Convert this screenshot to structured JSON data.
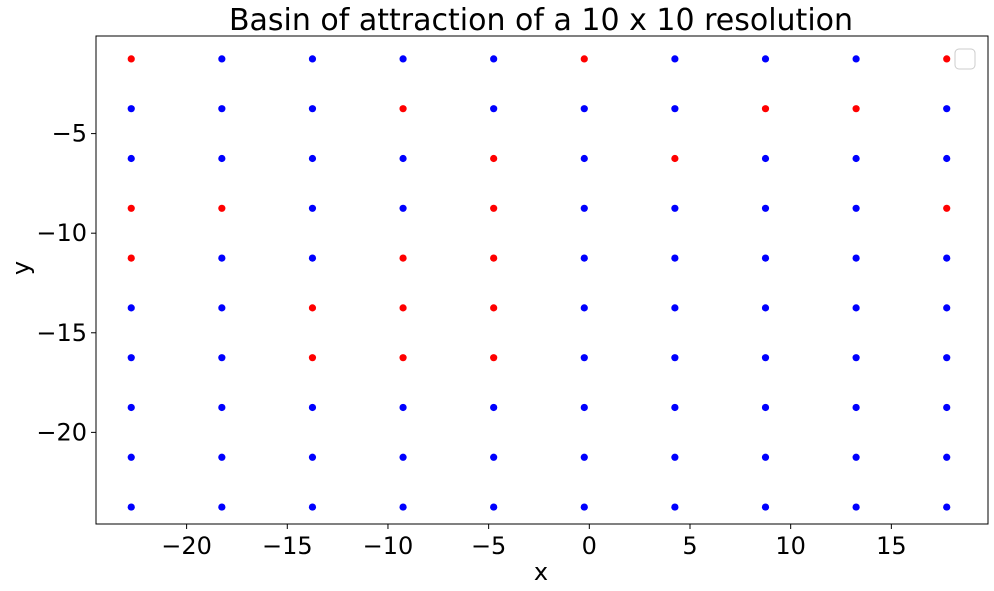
{
  "chart_data": {
    "type": "scatter",
    "title": "Basin of attraction of a 10 x 10 resolution",
    "xlabel": "x",
    "ylabel": "y",
    "xlim": [
      -24.5,
      19.8
    ],
    "ylim": [
      -24.6,
      -0.1
    ],
    "xticks": [
      -20,
      -15,
      -10,
      -5,
      0,
      5,
      10,
      15
    ],
    "xtick_labels": [
      "−20",
      "−15",
      "−10",
      "−5",
      "0",
      "5",
      "10",
      "15"
    ],
    "yticks": [
      -5,
      -10,
      -15,
      -20
    ],
    "ytick_labels": [
      "−5",
      "−10",
      "−15",
      "−20"
    ],
    "x": [
      -22.75,
      -18.25,
      -13.75,
      -9.25,
      -4.75,
      -0.25,
      4.25,
      8.75,
      13.25,
      17.75
    ],
    "y": [
      -1.25,
      -3.75,
      -6.25,
      -8.75,
      -11.25,
      -13.75,
      -16.25,
      -18.75,
      -21.25,
      -23.75
    ],
    "grid": false,
    "legend": "top-right, empty",
    "colors": {
      "red": "#ff0000",
      "blue": "#0000ff"
    },
    "point_colors": [
      [
        "red",
        "blue",
        "blue",
        "blue",
        "blue",
        "red",
        "blue",
        "blue",
        "blue",
        "red"
      ],
      [
        "blue",
        "blue",
        "blue",
        "red",
        "blue",
        "blue",
        "blue",
        "red",
        "red",
        "blue"
      ],
      [
        "blue",
        "blue",
        "blue",
        "blue",
        "red",
        "blue",
        "red",
        "blue",
        "blue",
        "blue"
      ],
      [
        "red",
        "red",
        "blue",
        "blue",
        "red",
        "blue",
        "blue",
        "blue",
        "blue",
        "red"
      ],
      [
        "red",
        "blue",
        "blue",
        "red",
        "red",
        "blue",
        "blue",
        "blue",
        "blue",
        "blue"
      ],
      [
        "blue",
        "blue",
        "red",
        "red",
        "red",
        "blue",
        "blue",
        "blue",
        "blue",
        "blue"
      ],
      [
        "blue",
        "blue",
        "red",
        "red",
        "red",
        "blue",
        "blue",
        "blue",
        "blue",
        "blue"
      ],
      [
        "blue",
        "blue",
        "blue",
        "blue",
        "blue",
        "blue",
        "blue",
        "blue",
        "blue",
        "blue"
      ],
      [
        "blue",
        "blue",
        "blue",
        "blue",
        "blue",
        "blue",
        "blue",
        "blue",
        "blue",
        "blue"
      ],
      [
        "blue",
        "blue",
        "blue",
        "blue",
        "blue",
        "blue",
        "blue",
        "blue",
        "blue",
        "blue"
      ]
    ]
  }
}
